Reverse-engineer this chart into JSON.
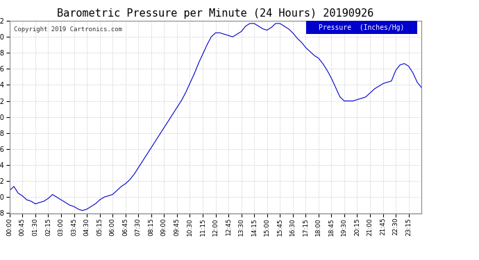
{
  "title": "Barometric Pressure per Minute (24 Hours) 20190926",
  "copyright": "Copyright 2019 Cartronics.com",
  "legend_label": "Pressure  (Inches/Hg)",
  "line_color": "#0000cc",
  "background_color": "#ffffff",
  "grid_color": "#cccccc",
  "y_min": 29.658,
  "y_max": 29.802,
  "y_tick_interval": 0.012,
  "x_tick_labels": [
    "00:00",
    "00:45",
    "01:30",
    "02:15",
    "03:00",
    "03:45",
    "04:30",
    "05:15",
    "06:00",
    "06:45",
    "07:30",
    "08:15",
    "09:00",
    "09:45",
    "10:30",
    "11:15",
    "12:00",
    "12:45",
    "13:30",
    "14:15",
    "15:00",
    "15:45",
    "16:30",
    "17:15",
    "18:00",
    "18:45",
    "19:30",
    "20:15",
    "21:00",
    "21:45",
    "22:30",
    "23:15"
  ],
  "keyframe_times": [
    0,
    15,
    30,
    45,
    60,
    75,
    90,
    105,
    120,
    135,
    150,
    165,
    180,
    195,
    210,
    225,
    240,
    255,
    270,
    285,
    300,
    315,
    330,
    345,
    360,
    375,
    390,
    405,
    420,
    435,
    450,
    465,
    480,
    495,
    510,
    525,
    540,
    555,
    570,
    585,
    600,
    615,
    630,
    645,
    660,
    675,
    690,
    705,
    720,
    735,
    750,
    765,
    780,
    795,
    810,
    825,
    840,
    855,
    870,
    885,
    900,
    915,
    930,
    945,
    960,
    975,
    990,
    1005,
    1020,
    1035,
    1050,
    1065,
    1080,
    1095,
    1110,
    1125,
    1140,
    1155,
    1170,
    1185,
    1200,
    1215,
    1230,
    1245,
    1260,
    1275,
    1290,
    1305,
    1320,
    1335,
    1350,
    1365,
    1380,
    1395,
    1410,
    1425,
    1440
  ],
  "keyframe_values": [
    29.675,
    29.678,
    29.673,
    29.671,
    29.668,
    29.667,
    29.665,
    29.666,
    29.667,
    29.669,
    29.672,
    29.67,
    29.668,
    29.666,
    29.664,
    29.663,
    29.661,
    29.66,
    29.661,
    29.663,
    29.665,
    29.668,
    29.67,
    29.671,
    29.672,
    29.675,
    29.678,
    29.68,
    29.683,
    29.687,
    29.692,
    29.697,
    29.702,
    29.707,
    29.712,
    29.717,
    29.722,
    29.727,
    29.732,
    29.737,
    29.742,
    29.748,
    29.755,
    29.762,
    29.77,
    29.777,
    29.784,
    29.79,
    29.793,
    29.793,
    29.792,
    29.791,
    29.79,
    29.792,
    29.794,
    29.798,
    29.8,
    29.8,
    29.798,
    29.796,
    29.795,
    29.797,
    29.8,
    29.8,
    29.798,
    29.796,
    29.793,
    29.789,
    29.786,
    29.782,
    29.779,
    29.776,
    29.774,
    29.77,
    29.765,
    29.759,
    29.752,
    29.745,
    29.742,
    29.742,
    29.742,
    29.743,
    29.744,
    29.745,
    29.748,
    29.751,
    29.753,
    29.755,
    29.756,
    29.757,
    29.765,
    29.769,
    29.77,
    29.768,
    29.763,
    29.756,
    29.752
  ]
}
